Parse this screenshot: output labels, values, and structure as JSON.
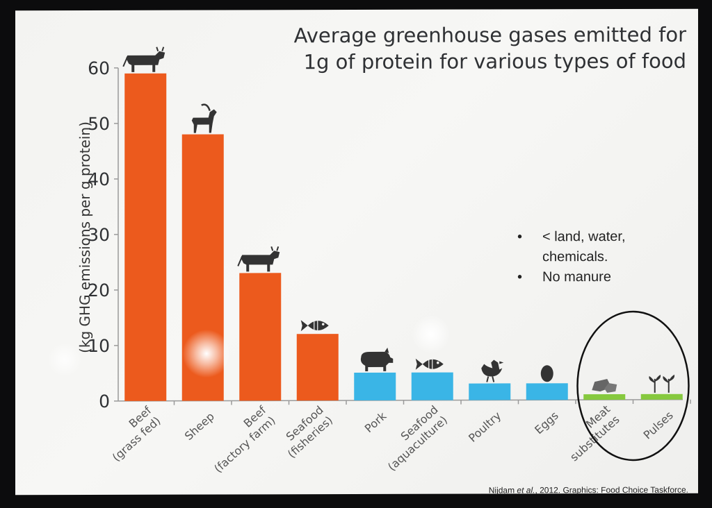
{
  "slide": {
    "title_line1": "Average greenhouse gases emitted for",
    "title_line2": "1g of protein for various types of food",
    "notes": [
      "< land, water,\nchemicals.",
      "No manure"
    ],
    "source_author": "Nijdam",
    "source_etal": "et al.",
    "source_rest": ", 2012. Graphics: Food Choice Taskforce."
  },
  "chart_data": {
    "type": "bar",
    "ylabel": "(kg GHG emissions per g protein)",
    "ylim": [
      0,
      60
    ],
    "yticks": [
      0,
      10,
      20,
      30,
      40,
      50,
      60
    ],
    "grid": false,
    "categories": [
      "Beef\n(grass fed)",
      "Sheep",
      "Beef\n(factory farm)",
      "Seafood\n(fisheries)",
      "Pork",
      "Seafood\n(aquaculture)",
      "Poultry",
      "Eggs",
      "Meat\nsubstitutes",
      "Pulses"
    ],
    "values": [
      59,
      48,
      23,
      12,
      5,
      5,
      3,
      3,
      1,
      1
    ],
    "colors": [
      "#ec5a1d",
      "#ec5a1d",
      "#ec5a1d",
      "#ec5a1d",
      "#3ab5e6",
      "#3ab5e6",
      "#3ab5e6",
      "#3ab5e6",
      "#86c93e",
      "#86c93e"
    ],
    "icons": [
      "cow-icon",
      "goat-icon",
      "cow-icon",
      "fish-icon",
      "pig-icon",
      "fish-icon",
      "chicken-icon",
      "egg-icon",
      "meat-substitute-icon",
      "sprout-icon"
    ],
    "highlight": [
      "Meat\nsubstitutes",
      "Pulses"
    ]
  }
}
